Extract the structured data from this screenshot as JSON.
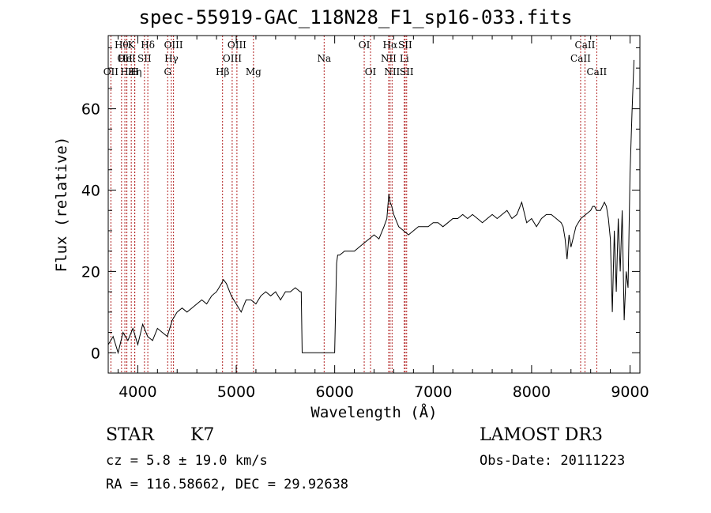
{
  "chart_data": {
    "type": "line",
    "title": "spec-55919-GAC_118N28_F1_sp16-033.fits",
    "xlabel": "Wavelength (Å)",
    "ylabel": "Flux (relative)",
    "xlim": [
      3700,
      9100
    ],
    "ylim": [
      -5,
      78
    ],
    "xticks": [
      4000,
      5000,
      6000,
      7000,
      8000,
      9000
    ],
    "yticks": [
      0,
      20,
      40,
      60
    ],
    "line_color": "#000000",
    "marker_color": "#b22222",
    "series": [
      {
        "x": [
          3700,
          3750,
          3800,
          3850,
          3900,
          3950,
          4000,
          4050,
          4100,
          4150,
          4200,
          4250,
          4300,
          4350,
          4400,
          4450,
          4500,
          4550,
          4600,
          4650,
          4700,
          4750,
          4800,
          4850,
          4870,
          4900,
          4950,
          5000,
          5050,
          5100,
          5150,
          5200,
          5250,
          5300,
          5350,
          5400,
          5450,
          5500,
          5550,
          5600,
          5650,
          5660,
          5670,
          5700,
          5800,
          5900,
          6000,
          6020,
          6030,
          6050,
          6100,
          6150,
          6200,
          6250,
          6300,
          6350,
          6400,
          6450,
          6500,
          6530,
          6550,
          6563,
          6580,
          6600,
          6650,
          6700,
          6750,
          6800,
          6850,
          6900,
          6950,
          7000,
          7050,
          7100,
          7150,
          7200,
          7250,
          7300,
          7350,
          7400,
          7450,
          7500,
          7550,
          7600,
          7650,
          7700,
          7750,
          7800,
          7850,
          7900,
          7950,
          8000,
          8050,
          8100,
          8150,
          8200,
          8250,
          8300,
          8320,
          8340,
          8360,
          8380,
          8400,
          8450,
          8500,
          8550,
          8600,
          8620,
          8640,
          8660,
          8700,
          8720,
          8740,
          8760,
          8780,
          8800,
          8820,
          8840,
          8860,
          8880,
          8900,
          8920,
          8940,
          8960,
          8980,
          9000,
          9020,
          9040
        ],
        "y": [
          2,
          4,
          0,
          5,
          3,
          6,
          2,
          7,
          4,
          3,
          6,
          5,
          4,
          8,
          10,
          11,
          10,
          11,
          12,
          13,
          12,
          14,
          15,
          17,
          18,
          17,
          14,
          12,
          10,
          13,
          13,
          12,
          14,
          15,
          14,
          15,
          13,
          15,
          15,
          16,
          15,
          15,
          0,
          0,
          0,
          0,
          0,
          22,
          24,
          24,
          25,
          25,
          25,
          26,
          27,
          28,
          29,
          28,
          31,
          33,
          39,
          37,
          36,
          34,
          31,
          30,
          29,
          30,
          31,
          31,
          31,
          32,
          32,
          31,
          32,
          33,
          33,
          34,
          33,
          34,
          33,
          32,
          33,
          34,
          33,
          34,
          35,
          33,
          34,
          37,
          32,
          33,
          31,
          33,
          34,
          34,
          33,
          32,
          31,
          28,
          23,
          29,
          26,
          31,
          33,
          34,
          35,
          36,
          36,
          35,
          35,
          36,
          37,
          36,
          33,
          28,
          10,
          30,
          15,
          33,
          20,
          35,
          8,
          20,
          16,
          44,
          59,
          72
        ]
      }
    ],
    "line_markers": [
      {
        "x": 3835,
        "label": "Hθ",
        "row": 0
      },
      {
        "x": 3869,
        "label": "OII",
        "row": 1
      },
      {
        "x": 3727,
        "label": "OII",
        "row": 2
      },
      {
        "x": 3889,
        "label": "Hε",
        "row": 2
      },
      {
        "x": 3934,
        "label": "K",
        "row": 0
      },
      {
        "x": 3969,
        "label": "H",
        "row": 2
      },
      {
        "x": 3889,
        "label": "HeI",
        "row": 1
      },
      {
        "x": 4068,
        "label": "SII",
        "row": 1
      },
      {
        "x": 4102,
        "label": "Hδ",
        "row": 0
      },
      {
        "x": 3970,
        "label": "Hη",
        "row": 2
      },
      {
        "x": 4304,
        "label": "G",
        "row": 2
      },
      {
        "x": 4341,
        "label": "Hγ",
        "row": 1
      },
      {
        "x": 4363,
        "label": "OIII",
        "row": 0
      },
      {
        "x": 4861,
        "label": "Hβ",
        "row": 2
      },
      {
        "x": 4959,
        "label": "OIII",
        "row": 1
      },
      {
        "x": 5007,
        "label": "OIII",
        "row": 0
      },
      {
        "x": 5175,
        "label": "Mg",
        "row": 2
      },
      {
        "x": 5893,
        "label": "Na",
        "row": 1
      },
      {
        "x": 6300,
        "label": "OI",
        "row": 0
      },
      {
        "x": 6364,
        "label": "OI",
        "row": 2
      },
      {
        "x": 6548,
        "label": "NII",
        "row": 1
      },
      {
        "x": 6563,
        "label": "Hα",
        "row": 0
      },
      {
        "x": 6583,
        "label": "NII",
        "row": 2
      },
      {
        "x": 6707,
        "label": "Li",
        "row": 1
      },
      {
        "x": 6716,
        "label": "SII",
        "row": 0
      },
      {
        "x": 6731,
        "label": "SII",
        "row": 2
      },
      {
        "x": 8498,
        "label": "CaII",
        "row": 1
      },
      {
        "x": 8542,
        "label": "CaII",
        "row": 0
      },
      {
        "x": 8662,
        "label": "CaII",
        "row": 2
      }
    ]
  },
  "info": {
    "object_class": "STAR",
    "subclass": "K7",
    "survey": "LAMOST DR3",
    "cz": "cz = 5.8 ± 19.0 km/s",
    "obs_date": "Obs-Date: 20111223",
    "coords": "RA = 116.58662, DEC =  29.92638"
  }
}
